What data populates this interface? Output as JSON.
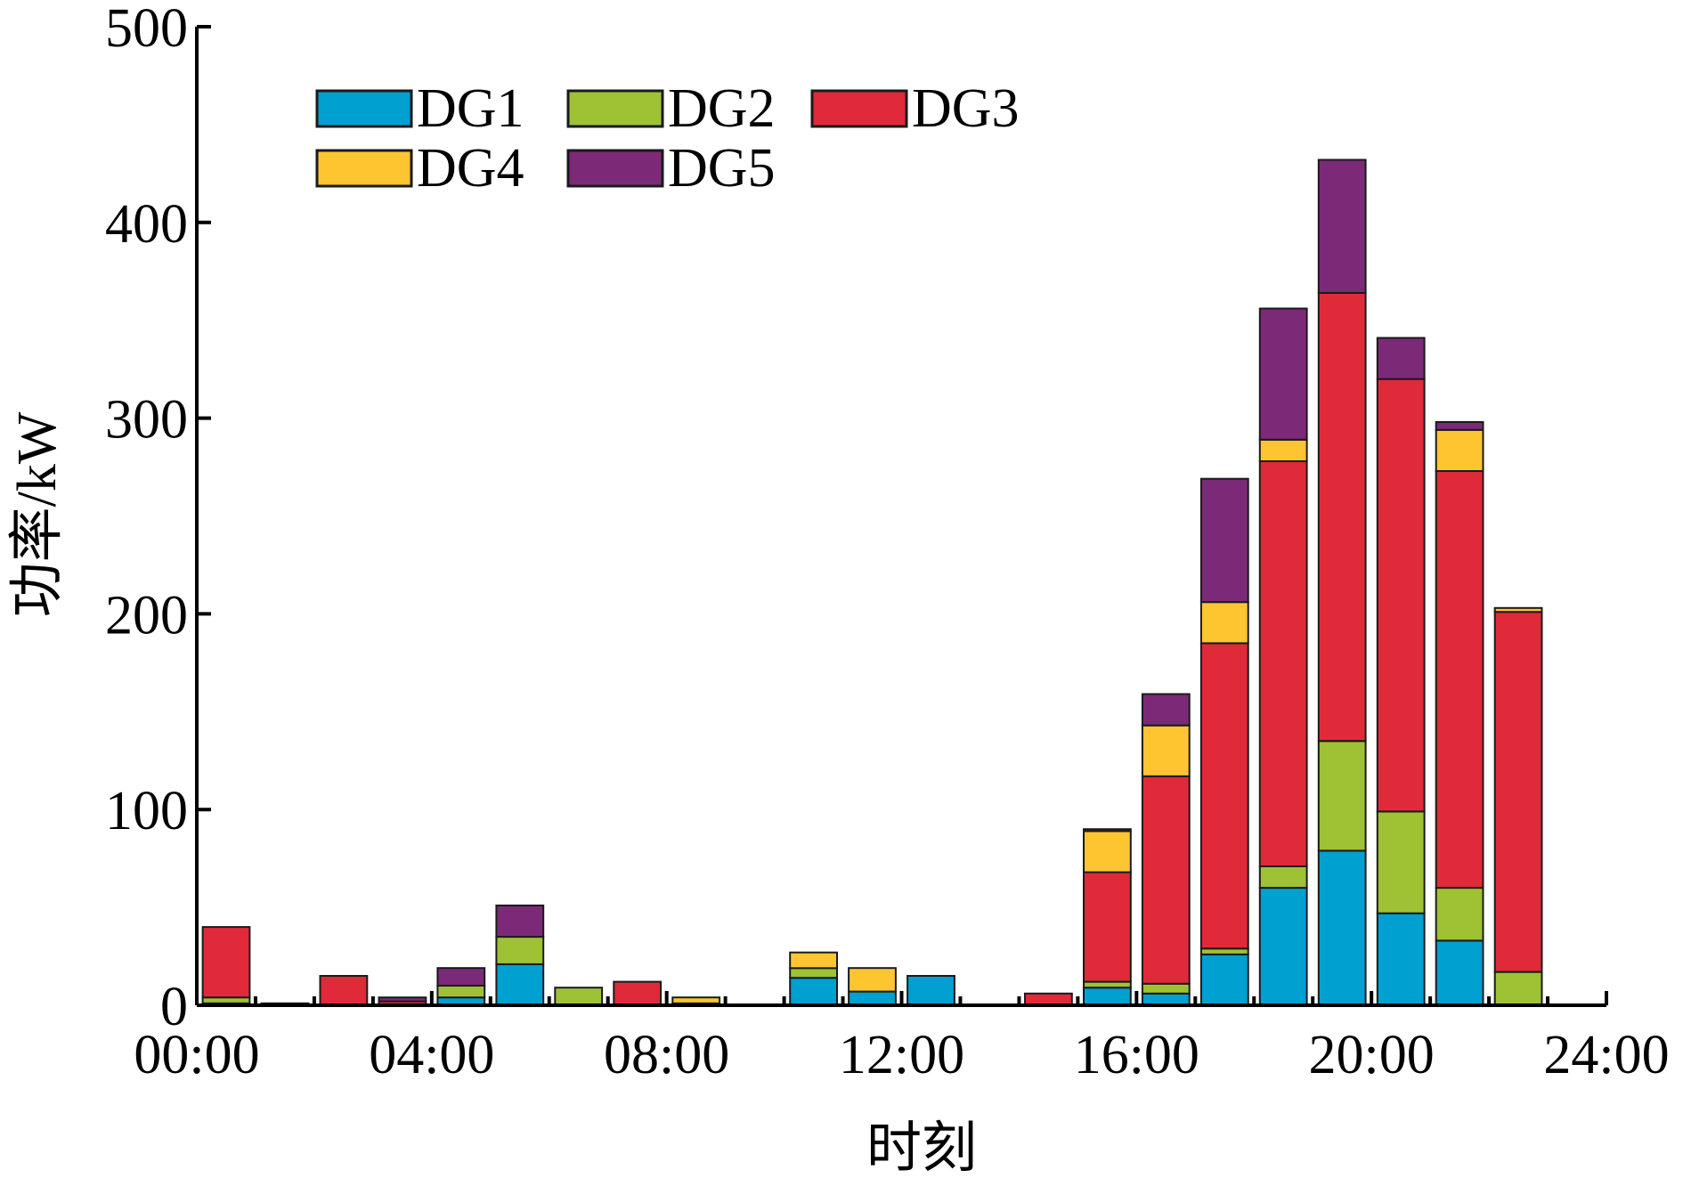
{
  "chart_data": {
    "type": "bar",
    "stacked": true,
    "xlabel": "时刻",
    "ylabel": "功率/kW",
    "ylim": [
      0,
      500
    ],
    "yticks": [
      0,
      100,
      200,
      300,
      400,
      500
    ],
    "xlim": [
      0,
      24
    ],
    "xticks": [
      "00:00",
      "04:00",
      "08:00",
      "12:00",
      "16:00",
      "20:00",
      "24:00"
    ],
    "x": [
      0,
      1,
      2,
      3,
      4,
      5,
      6,
      7,
      8,
      9,
      10,
      11,
      12,
      13,
      14,
      15,
      16,
      17,
      18,
      19,
      20,
      21,
      22,
      23
    ],
    "legend_position": "top-left",
    "grid": false,
    "series": [
      {
        "name": "DG1",
        "color": "#00a0d0",
        "values": [
          1,
          0,
          0,
          0,
          4,
          21,
          0,
          0,
          0,
          0,
          14,
          7,
          15,
          0,
          0,
          9,
          6,
          26,
          60,
          79,
          47,
          33,
          0,
          0
        ]
      },
      {
        "name": "DG2",
        "color": "#9ec234",
        "values": [
          3,
          0,
          0,
          0,
          6,
          14,
          9,
          0,
          1,
          0,
          5,
          0,
          0,
          0,
          0,
          3,
          5,
          3,
          11,
          56,
          52,
          27,
          17,
          0
        ]
      },
      {
        "name": "DG3",
        "color": "#e02a3a",
        "values": [
          36,
          1,
          15,
          2,
          0,
          0,
          0,
          12,
          0,
          0,
          0,
          0,
          0,
          0,
          6,
          56,
          106,
          156,
          207,
          229,
          221,
          213,
          184,
          0
        ]
      },
      {
        "name": "DG4",
        "color": "#fdc630",
        "values": [
          0,
          0,
          0,
          0,
          0,
          0,
          0,
          0,
          3,
          0,
          8,
          12,
          0,
          0,
          0,
          21,
          26,
          21,
          11,
          0,
          0,
          21,
          2,
          0
        ]
      },
      {
        "name": "DG5",
        "color": "#7c2a78",
        "values": [
          0,
          0,
          0,
          2,
          9,
          16,
          0,
          0,
          0,
          0,
          0,
          0,
          0,
          0,
          0,
          1,
          16,
          63,
          67,
          68,
          21,
          4,
          0,
          0
        ]
      }
    ]
  }
}
